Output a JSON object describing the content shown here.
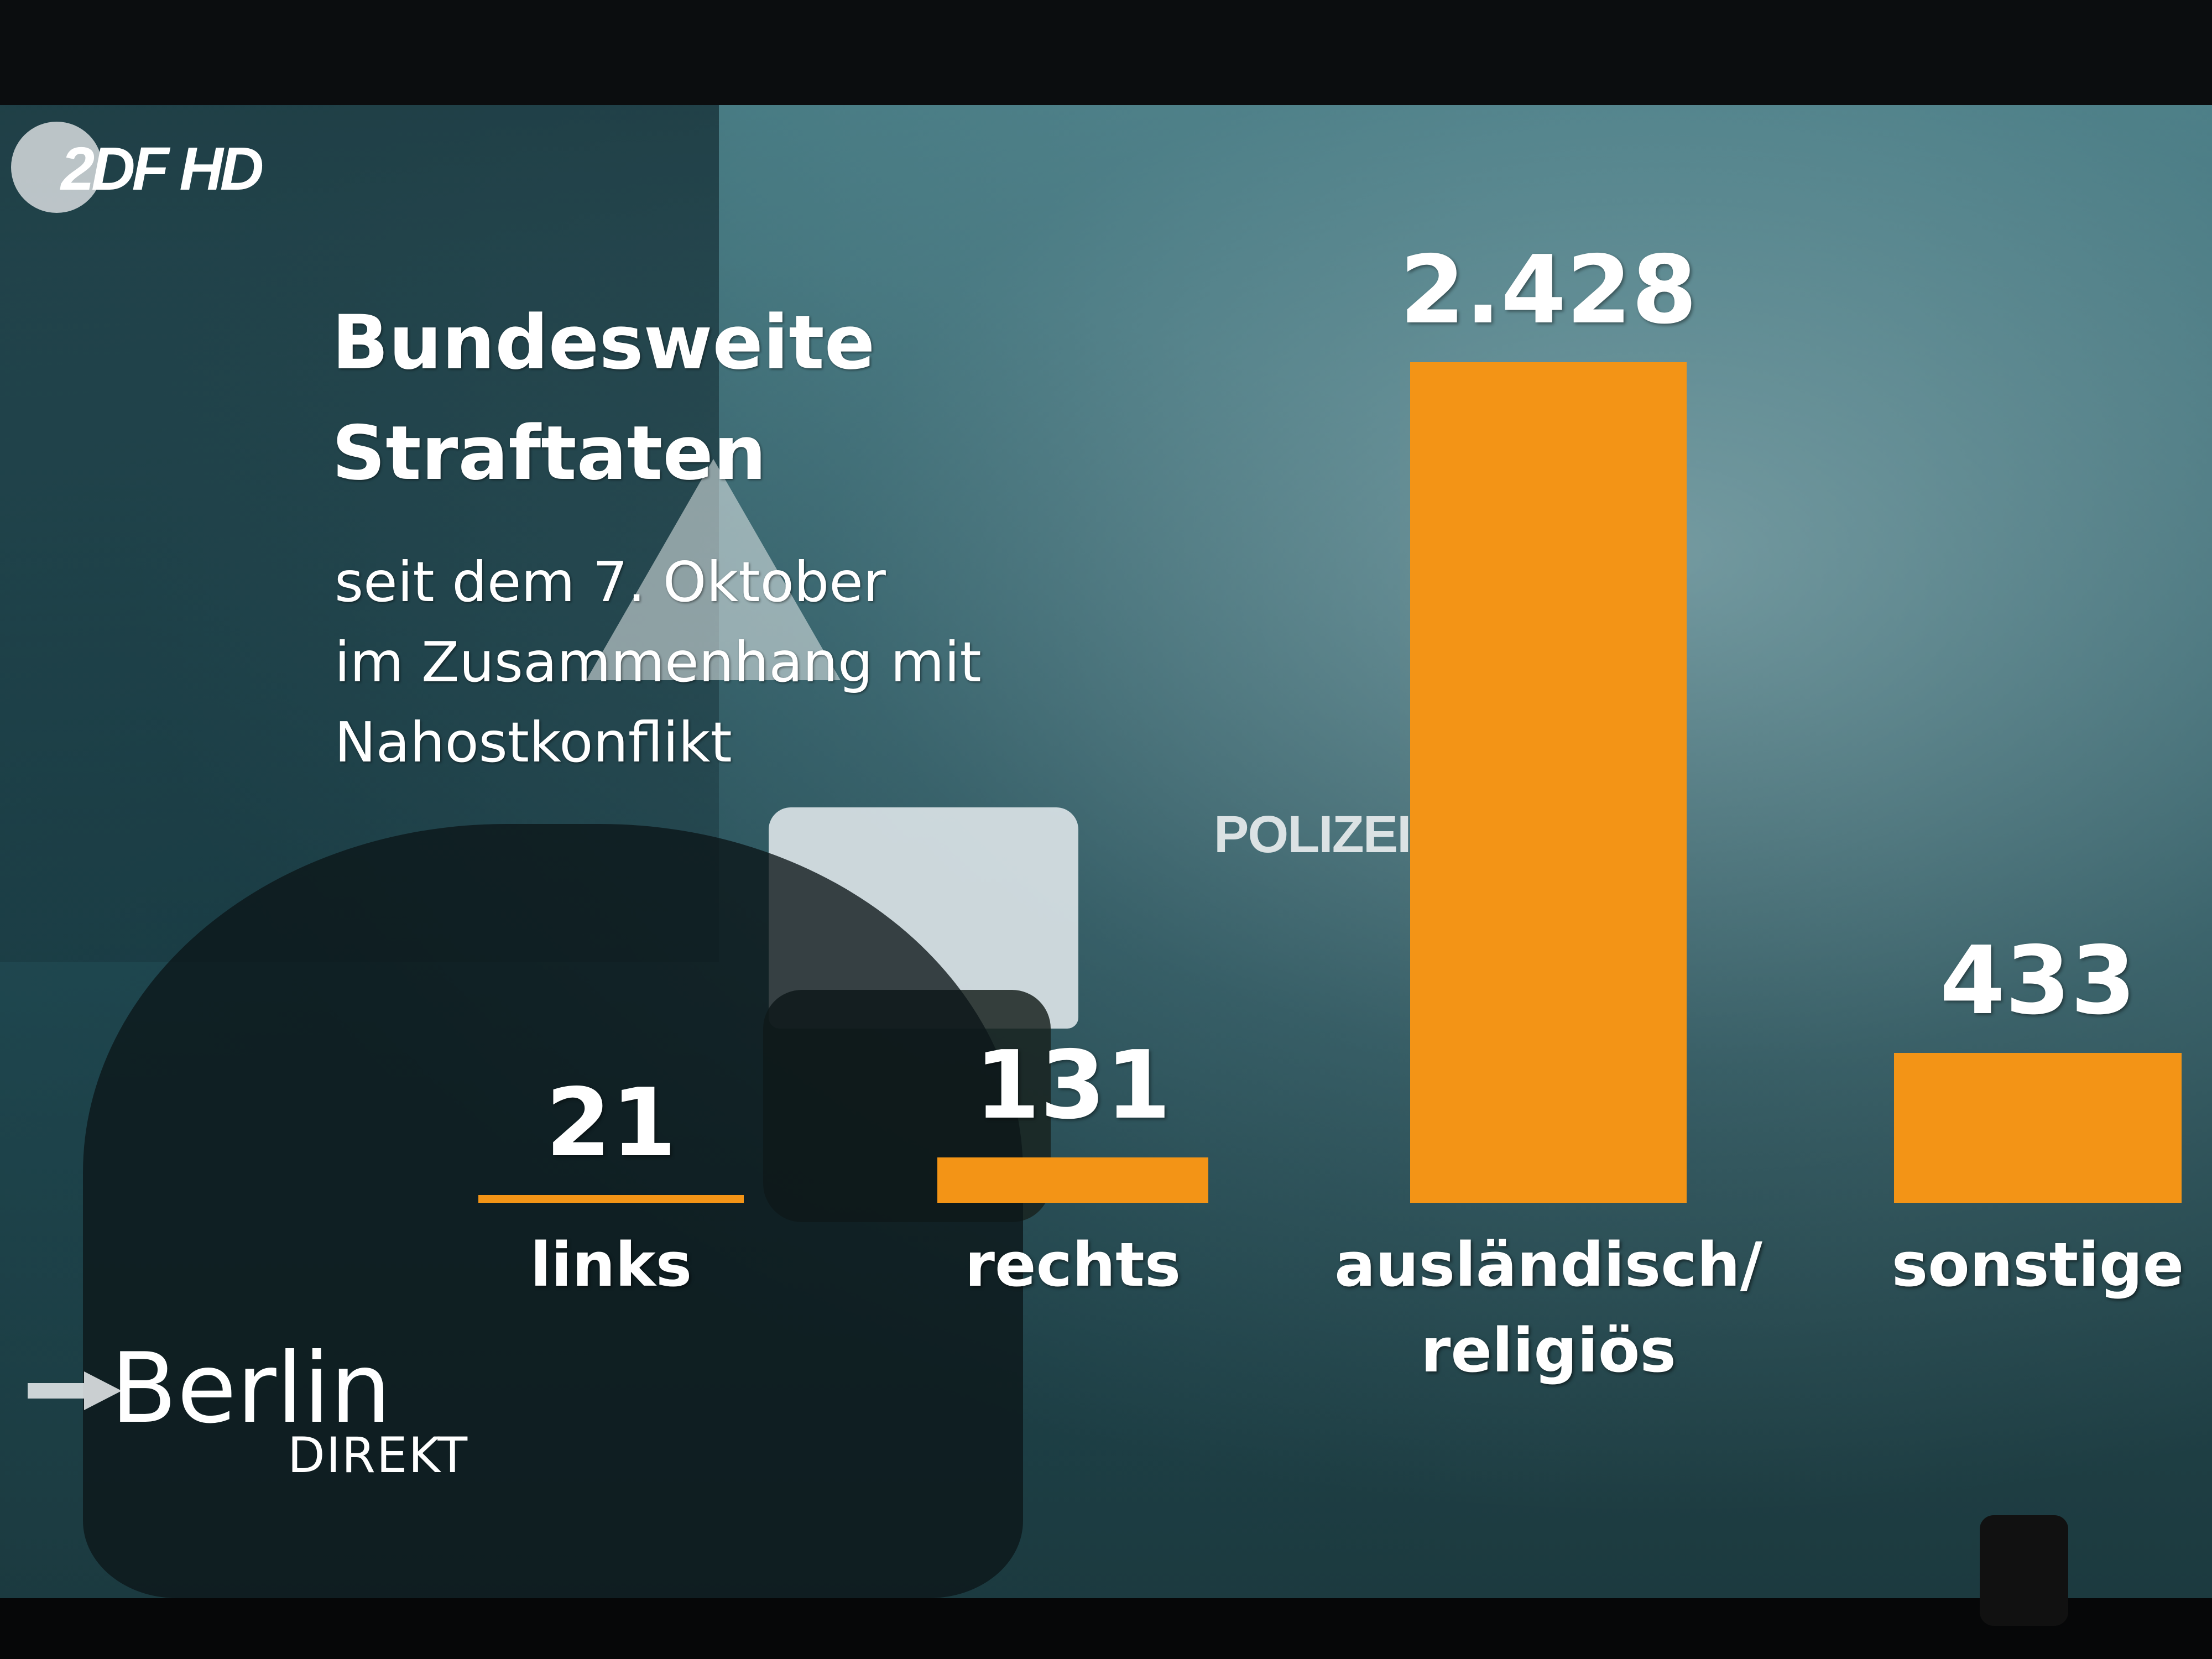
{
  "channel": {
    "logo_text": "2DF HD"
  },
  "title": "Bundesweite Straftaten",
  "title_lines": [
    "Bundesweite",
    "Straftaten"
  ],
  "subtitle_lines": [
    "seit dem 7. Oktober",
    "im Zusammenhang mit",
    "Nahostkonflikt"
  ],
  "background": {
    "sign_text": "POLIZEI"
  },
  "show": {
    "name": "Berlin",
    "sub": "DIREKT"
  },
  "colors": {
    "bar": "#f39416",
    "text": "#ffffff"
  },
  "chart_data": {
    "type": "bar",
    "title": "Bundesweite Straftaten",
    "subtitle": "seit dem 7. Oktober im Zusammenhang mit Nahostkonflikt",
    "categories": [
      "links",
      "rechts",
      "ausländisch/ religiös",
      "sonstige"
    ],
    "category_lines": [
      [
        "links"
      ],
      [
        "rechts"
      ],
      [
        "ausländisch/",
        "religiös"
      ],
      [
        "sonstige"
      ]
    ],
    "values": [
      21,
      131,
      2428,
      433
    ],
    "value_labels": [
      "21",
      "131",
      "2.428",
      "433"
    ],
    "xlabel": "",
    "ylabel": "",
    "ylim": [
      0,
      2428
    ],
    "grid": false,
    "legend": "none"
  }
}
